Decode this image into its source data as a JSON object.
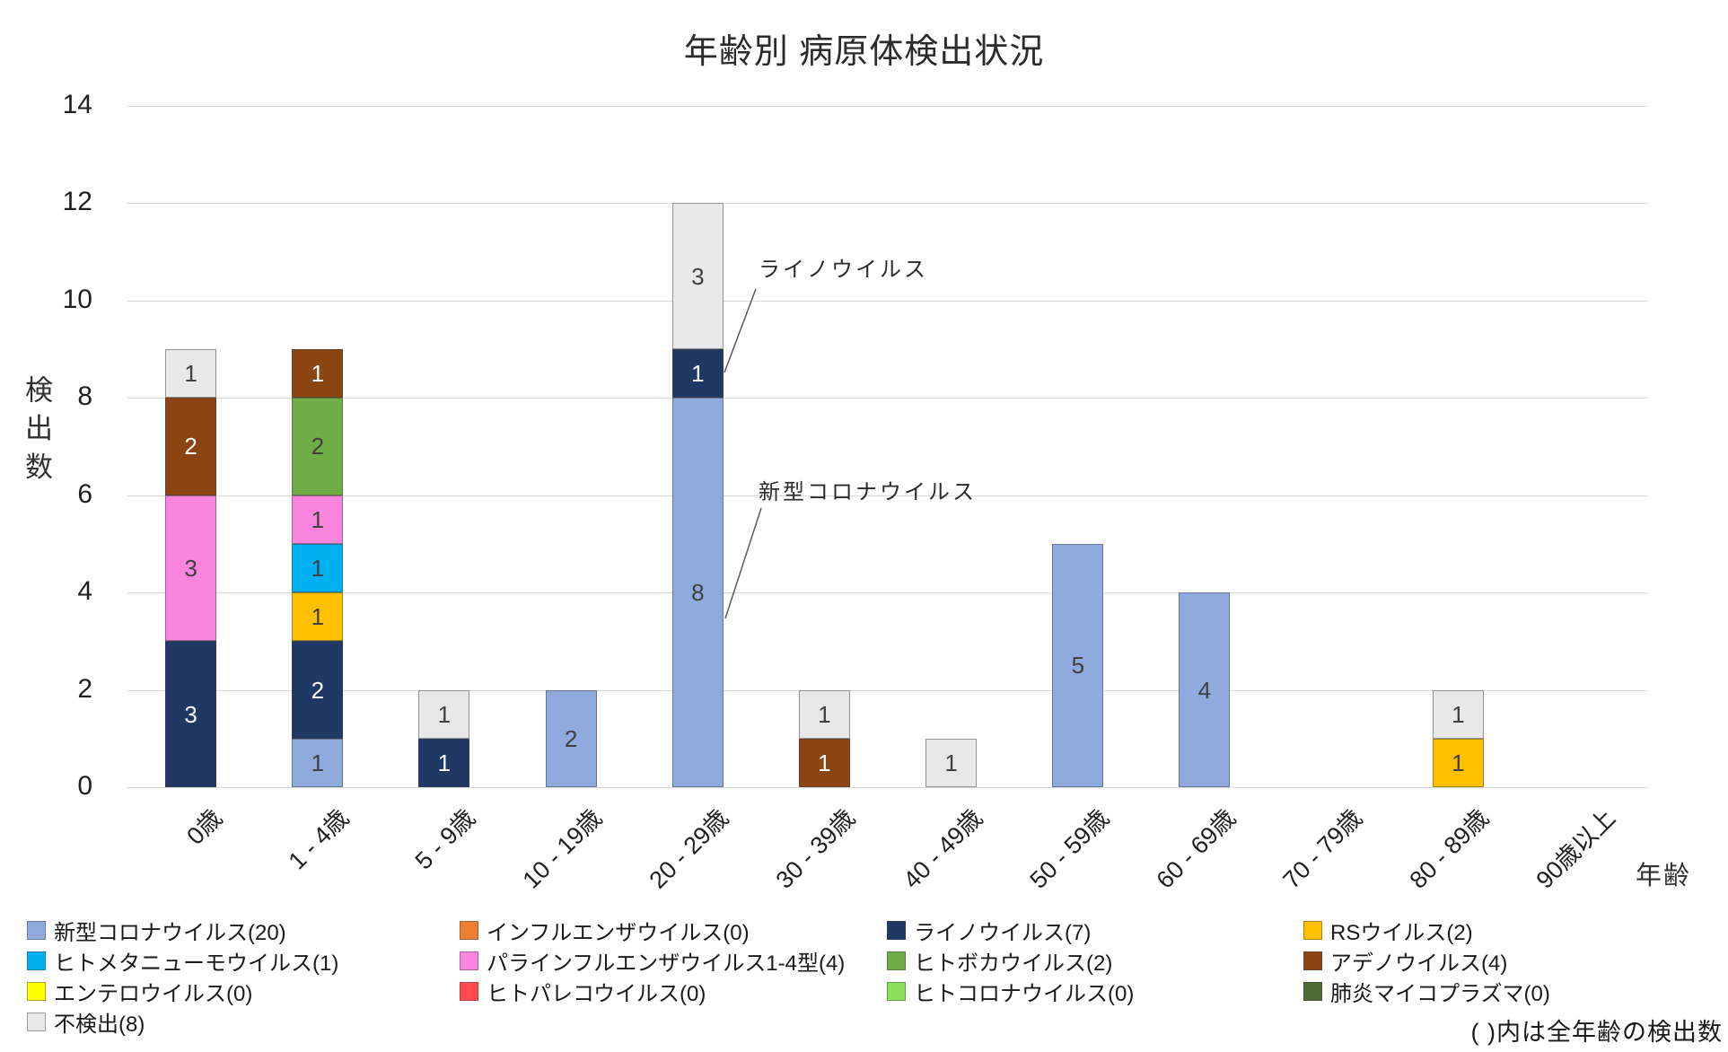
{
  "chart_data": {
    "type": "bar",
    "stacked": true,
    "title": "年齢別 病原体検出状況",
    "xlabel": "年齢",
    "ylabel": "検出数",
    "ylim": [
      0,
      14
    ],
    "yticks": [
      0,
      2,
      4,
      6,
      8,
      10,
      12,
      14
    ],
    "grid": true,
    "legend_position": "bottom",
    "footnote": "( )内は全年齢の検出数",
    "categories": [
      "0歳",
      "1 - 4歳",
      "5 - 9歳",
      "10 - 19歳",
      "20 - 29歳",
      "30 - 39歳",
      "40 - 49歳",
      "50 - 59歳",
      "60 - 69歳",
      "70 - 79歳",
      "80 - 89歳",
      "90歳以上"
    ],
    "series": [
      {
        "name": "新型コロナウイルス",
        "total": 20,
        "legend_label": "新型コロナウイルス(20)",
        "color": "#8faadc",
        "label_color": "#404040",
        "values": [
          0,
          1,
          0,
          2,
          8,
          0,
          0,
          5,
          4,
          0,
          0,
          0
        ]
      },
      {
        "name": "インフルエンザウイルス",
        "total": 0,
        "legend_label": "インフルエンザウイルス(0)",
        "color": "#ed7d31",
        "label_color": "#404040",
        "values": [
          0,
          0,
          0,
          0,
          0,
          0,
          0,
          0,
          0,
          0,
          0,
          0
        ]
      },
      {
        "name": "ライノウイルス",
        "total": 7,
        "legend_label": "ライノウイルス(7)",
        "color": "#1f3864",
        "label_color": "#ffffff",
        "values": [
          3,
          2,
          1,
          0,
          1,
          0,
          0,
          0,
          0,
          0,
          0,
          0
        ]
      },
      {
        "name": "RSウイルス",
        "total": 2,
        "legend_label": "RSウイルス(2)",
        "color": "#ffc000",
        "label_color": "#404040",
        "values": [
          0,
          1,
          0,
          0,
          0,
          0,
          0,
          0,
          0,
          0,
          1,
          0
        ]
      },
      {
        "name": "ヒトメタニューモウイルス",
        "total": 1,
        "legend_label": "ヒトメタニューモウイルス(1)",
        "color": "#00b0f0",
        "label_color": "#404040",
        "values": [
          0,
          1,
          0,
          0,
          0,
          0,
          0,
          0,
          0,
          0,
          0,
          0
        ]
      },
      {
        "name": "パラインフルエンザウイルス1-4型",
        "total": 4,
        "legend_label": "パラインフルエンザウイルス1-4型(4)",
        "color": "#f985de",
        "label_color": "#404040",
        "values": [
          3,
          1,
          0,
          0,
          0,
          0,
          0,
          0,
          0,
          0,
          0,
          0
        ]
      },
      {
        "name": "ヒトボカウイルス",
        "total": 2,
        "legend_label": "ヒトボカウイルス(2)",
        "color": "#70ad47",
        "label_color": "#404040",
        "values": [
          0,
          2,
          0,
          0,
          0,
          0,
          0,
          0,
          0,
          0,
          0,
          0
        ]
      },
      {
        "name": "アデノウイルス",
        "total": 4,
        "legend_label": "アデノウイルス(4)",
        "color": "#8b4513",
        "label_color": "#ffffff",
        "values": [
          2,
          1,
          0,
          0,
          0,
          1,
          0,
          0,
          0,
          0,
          0,
          0
        ]
      },
      {
        "name": "エンテロウイルス",
        "total": 0,
        "legend_label": "エンテロウイルス(0)",
        "color": "#ffff00",
        "label_color": "#404040",
        "values": [
          0,
          0,
          0,
          0,
          0,
          0,
          0,
          0,
          0,
          0,
          0,
          0
        ]
      },
      {
        "name": "ヒトパレコウイルス",
        "total": 0,
        "legend_label": "ヒトパレコウイルス(0)",
        "color": "#ff4b4b",
        "label_color": "#404040",
        "values": [
          0,
          0,
          0,
          0,
          0,
          0,
          0,
          0,
          0,
          0,
          0,
          0
        ]
      },
      {
        "name": "ヒトコロナウイルス",
        "total": 0,
        "legend_label": "ヒトコロナウイルス(0)",
        "color": "#8ce15a",
        "label_color": "#404040",
        "values": [
          0,
          0,
          0,
          0,
          0,
          0,
          0,
          0,
          0,
          0,
          0,
          0
        ]
      },
      {
        "name": "肺炎マイコプラズマ",
        "total": 0,
        "legend_label": "肺炎マイコプラズマ(0)",
        "color": "#4d6b32",
        "label_color": "#ffffff",
        "values": [
          0,
          0,
          0,
          0,
          0,
          0,
          0,
          0,
          0,
          0,
          0,
          0
        ]
      },
      {
        "name": "不検出",
        "total": 8,
        "legend_label": "不検出(8)",
        "color": "#e9e8e8",
        "label_color": "#404040",
        "values": [
          1,
          0,
          1,
          0,
          3,
          1,
          1,
          0,
          0,
          0,
          1,
          0
        ]
      }
    ],
    "annotations": [
      {
        "text": "ライノウイルス",
        "target_series": "ライノウイルス",
        "target_category": "20 - 29歳"
      },
      {
        "text": "新型コロナウイルス",
        "target_series": "新型コロナウイルス",
        "target_category": "20 - 29歳"
      }
    ]
  }
}
